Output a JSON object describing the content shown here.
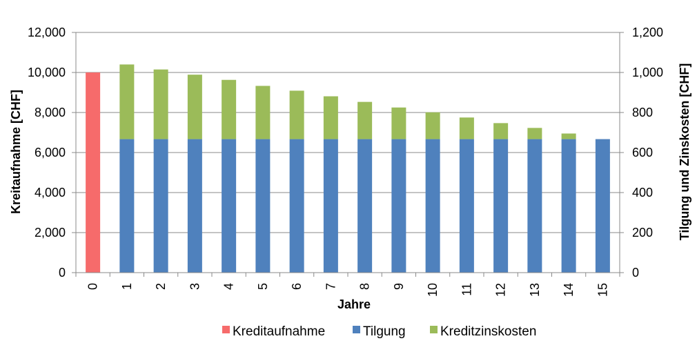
{
  "chart_data": {
    "type": "bar",
    "stacked": true,
    "xlabel": "Jahre",
    "ylabel_left": "Kreitaufnahme [CHF]",
    "ylabel_right": "Tilgung und Zinskosten  [CHF]",
    "categories": [
      "0",
      "1",
      "2",
      "3",
      "4",
      "5",
      "6",
      "7",
      "8",
      "9",
      "10",
      "11",
      "12",
      "13",
      "14",
      "15"
    ],
    "ylim_left": [
      0,
      12000
    ],
    "ylim_right": [
      0,
      1200
    ],
    "left_ticks": [
      "0",
      "2,000",
      "4,000",
      "6,000",
      "8,000",
      "10,000",
      "12,000"
    ],
    "right_ticks": [
      "0",
      "200",
      "400",
      "600",
      "800",
      "1,000",
      "1,200"
    ],
    "grid": true,
    "legend_position": "bottom",
    "series": [
      {
        "name": "Kreditaufnahme",
        "axis": "left",
        "color": "#F66B6B",
        "values": [
          10000,
          0,
          0,
          0,
          0,
          0,
          0,
          0,
          0,
          0,
          0,
          0,
          0,
          0,
          0,
          0
        ]
      },
      {
        "name": "Tilgung",
        "axis": "right",
        "color": "#4F81BD",
        "values": [
          0,
          667,
          667,
          667,
          667,
          667,
          667,
          667,
          667,
          667,
          667,
          667,
          667,
          667,
          667,
          667
        ]
      },
      {
        "name": "Kreditzinskosten",
        "axis": "right",
        "color": "#9BBB59",
        "values": [
          0,
          373,
          348,
          322,
          296,
          266,
          242,
          214,
          186,
          158,
          134,
          108,
          80,
          56,
          28,
          0
        ]
      }
    ]
  }
}
